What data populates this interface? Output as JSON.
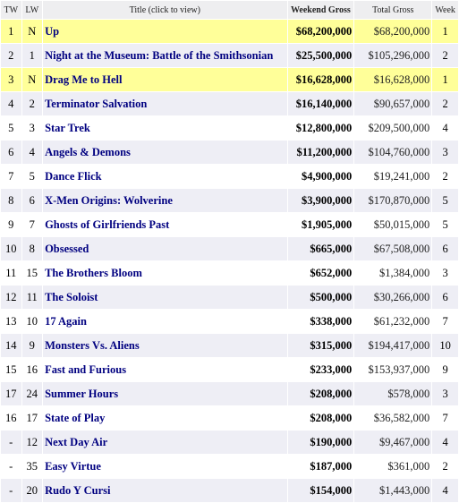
{
  "headers": {
    "tw": "TW",
    "lw": "LW",
    "title": "Title (click to view)",
    "weekend": "Weekend Gross",
    "total": "Total Gross",
    "week": "Week"
  },
  "rows": [
    {
      "tw": "1",
      "lw": "N",
      "title": "Up",
      "weekend": "$68,200,000",
      "total": "$68,200,000",
      "week": "1",
      "new": true
    },
    {
      "tw": "2",
      "lw": "1",
      "title": "Night at the Museum: Battle of the Smithsonian",
      "weekend": "$25,500,000",
      "total": "$105,296,000",
      "week": "2",
      "new": false
    },
    {
      "tw": "3",
      "lw": "N",
      "title": "Drag Me to Hell",
      "weekend": "$16,628,000",
      "total": "$16,628,000",
      "week": "1",
      "new": true
    },
    {
      "tw": "4",
      "lw": "2",
      "title": "Terminator Salvation",
      "weekend": "$16,140,000",
      "total": "$90,657,000",
      "week": "2",
      "new": false
    },
    {
      "tw": "5",
      "lw": "3",
      "title": "Star Trek",
      "weekend": "$12,800,000",
      "total": "$209,500,000",
      "week": "4",
      "new": false
    },
    {
      "tw": "6",
      "lw": "4",
      "title": "Angels & Demons",
      "weekend": "$11,200,000",
      "total": "$104,760,000",
      "week": "3",
      "new": false
    },
    {
      "tw": "7",
      "lw": "5",
      "title": "Dance Flick",
      "weekend": "$4,900,000",
      "total": "$19,241,000",
      "week": "2",
      "new": false
    },
    {
      "tw": "8",
      "lw": "6",
      "title": "X-Men Origins: Wolverine",
      "weekend": "$3,900,000",
      "total": "$170,870,000",
      "week": "5",
      "new": false
    },
    {
      "tw": "9",
      "lw": "7",
      "title": "Ghosts of Girlfriends Past",
      "weekend": "$1,905,000",
      "total": "$50,015,000",
      "week": "5",
      "new": false
    },
    {
      "tw": "10",
      "lw": "8",
      "title": "Obsessed",
      "weekend": "$665,000",
      "total": "$67,508,000",
      "week": "6",
      "new": false
    },
    {
      "tw": "11",
      "lw": "15",
      "title": "The Brothers Bloom",
      "weekend": "$652,000",
      "total": "$1,384,000",
      "week": "3",
      "new": false
    },
    {
      "tw": "12",
      "lw": "11",
      "title": "The Soloist",
      "weekend": "$500,000",
      "total": "$30,266,000",
      "week": "6",
      "new": false
    },
    {
      "tw": "13",
      "lw": "10",
      "title": "17 Again",
      "weekend": "$338,000",
      "total": "$61,232,000",
      "week": "7",
      "new": false
    },
    {
      "tw": "14",
      "lw": "9",
      "title": "Monsters Vs. Aliens",
      "weekend": "$315,000",
      "total": "$194,417,000",
      "week": "10",
      "new": false
    },
    {
      "tw": "15",
      "lw": "16",
      "title": "Fast and Furious",
      "weekend": "$233,000",
      "total": "$153,937,000",
      "week": "9",
      "new": false
    },
    {
      "tw": "17",
      "lw": "24",
      "title": "Summer Hours",
      "weekend": "$208,000",
      "total": "$578,000",
      "week": "3",
      "new": false
    },
    {
      "tw": "16",
      "lw": "17",
      "title": "State of Play",
      "weekend": "$208,000",
      "total": "$36,582,000",
      "week": "7",
      "new": false
    },
    {
      "tw": "-",
      "lw": "12",
      "title": "Next Day Air",
      "weekend": "$190,000",
      "total": "$9,467,000",
      "week": "4",
      "new": false
    },
    {
      "tw": "-",
      "lw": "35",
      "title": "Easy Virtue",
      "weekend": "$187,000",
      "total": "$361,000",
      "week": "2",
      "new": false
    },
    {
      "tw": "-",
      "lw": "20",
      "title": "Rudo Y Cursi",
      "weekend": "$154,000",
      "total": "$1,443,000",
      "week": "4",
      "new": false
    }
  ],
  "colors": {
    "new_release_highlight": "#ffff99",
    "title_link": "#000080",
    "alt_row": "#eeeef5",
    "header_bg": "#eeeef0"
  }
}
